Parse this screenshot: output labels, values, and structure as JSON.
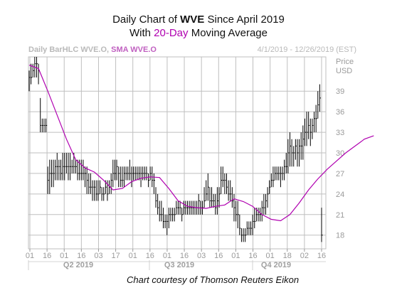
{
  "header": {
    "line1_pre": "Daily Chart of ",
    "line1_ticker": "WVE",
    "line1_post": " Since April 2019",
    "line2_pre": "With ",
    "line2_hl": "20-Day",
    "line2_post": " Moving Average",
    "sub_left": "Daily BarHLC WVE.O, ",
    "sub_left_ma": "SMA WVE.O",
    "sub_right": "4/1/2019 - 12/26/2019 (EST)"
  },
  "credit": "Chart courtesy of Thomson Reuters Eikon",
  "colors": {
    "bars": "#000000",
    "sma": "#b000b0",
    "grid": "#bfbfbf",
    "accent": "#b000b0"
  },
  "chart_data": {
    "type": "line",
    "title": "Daily Chart of WVE Since April 2019",
    "subtitle": "With 20-Day Moving Average",
    "ylabel": "Price USD",
    "yaxis_title": [
      "Price",
      "USD"
    ],
    "ylim": [
      16,
      44
    ],
    "yticks": [
      18,
      21,
      24,
      27,
      30,
      33,
      36,
      39
    ],
    "xlabels": [
      "01",
      "16",
      "01",
      "16",
      "03",
      "17",
      "01",
      "16",
      "01",
      "16",
      "03",
      "16",
      "01",
      "16",
      "01",
      "18",
      "02",
      "16"
    ],
    "quarters": [
      "Q2 2019",
      "Q3 2019",
      "Q4 2019"
    ],
    "grid": true,
    "series": [
      {
        "name": "Daily BarHLC WVE.O",
        "kind": "hlc",
        "points": [
          [
            39,
            42,
            41
          ],
          [
            40,
            43,
            41
          ],
          [
            41,
            43,
            42
          ],
          [
            41,
            44,
            43
          ],
          [
            41,
            44,
            43
          ],
          [
            40,
            43,
            42
          ],
          [
            33,
            38,
            34
          ],
          [
            33,
            35,
            34
          ],
          [
            33,
            35,
            34
          ],
          [
            33,
            35,
            34
          ],
          [
            24,
            28,
            26
          ],
          [
            24,
            29,
            27
          ],
          [
            25,
            29,
            27
          ],
          [
            25,
            29,
            27
          ],
          [
            26,
            29,
            28
          ],
          [
            26,
            30,
            28
          ],
          [
            26,
            29,
            28
          ],
          [
            26,
            29,
            27
          ],
          [
            26,
            30,
            28
          ],
          [
            26,
            30,
            28
          ],
          [
            27,
            30,
            28
          ],
          [
            26,
            30,
            28
          ],
          [
            26,
            30,
            28
          ],
          [
            27,
            29,
            28
          ],
          [
            27,
            30,
            28
          ],
          [
            27,
            29,
            28
          ],
          [
            26,
            29,
            27
          ],
          [
            26,
            29,
            27
          ],
          [
            26,
            29,
            27
          ],
          [
            26,
            29,
            27
          ],
          [
            25,
            28,
            27
          ],
          [
            24,
            28,
            26
          ],
          [
            24,
            27,
            25
          ],
          [
            24,
            27,
            25
          ],
          [
            23,
            26,
            25
          ],
          [
            23,
            26,
            25
          ],
          [
            23,
            26,
            24
          ],
          [
            23,
            26,
            24
          ],
          [
            24,
            26,
            25
          ],
          [
            23,
            25,
            24
          ],
          [
            23,
            25,
            24
          ],
          [
            24,
            26,
            25
          ],
          [
            23,
            26,
            24
          ],
          [
            24,
            26,
            25
          ],
          [
            24,
            27,
            26
          ],
          [
            25,
            29,
            27
          ],
          [
            26,
            29,
            27
          ],
          [
            26,
            29,
            28
          ],
          [
            25,
            28,
            27
          ],
          [
            25,
            28,
            26
          ],
          [
            25,
            28,
            26
          ],
          [
            25,
            28,
            27
          ],
          [
            26,
            28,
            27
          ],
          [
            26,
            28,
            27
          ],
          [
            26,
            29,
            27
          ],
          [
            25,
            28,
            27
          ],
          [
            26,
            28,
            27
          ],
          [
            26,
            28,
            27
          ],
          [
            26,
            28,
            27
          ],
          [
            26,
            28,
            27
          ],
          [
            25,
            28,
            27
          ],
          [
            26,
            28,
            27
          ],
          [
            26,
            28,
            27
          ],
          [
            26,
            28,
            27
          ],
          [
            25,
            27,
            26
          ],
          [
            26,
            28,
            27
          ],
          [
            25,
            28,
            26
          ],
          [
            24,
            27,
            26
          ],
          [
            22,
            25,
            23
          ],
          [
            21,
            24,
            22
          ],
          [
            20,
            23,
            21
          ],
          [
            20,
            23,
            21
          ],
          [
            19,
            22,
            20
          ],
          [
            19,
            21,
            20
          ],
          [
            18,
            21,
            20
          ],
          [
            19,
            22,
            21
          ],
          [
            20,
            22,
            21
          ],
          [
            20,
            22,
            21
          ],
          [
            20,
            22,
            21
          ],
          [
            21,
            23,
            22
          ],
          [
            21,
            23,
            22
          ],
          [
            21,
            23,
            22
          ],
          [
            20,
            22,
            21
          ],
          [
            21,
            23,
            22
          ],
          [
            21,
            23,
            22
          ],
          [
            21,
            23,
            22
          ],
          [
            21,
            23,
            22
          ],
          [
            21,
            23,
            22
          ],
          [
            21,
            23,
            22
          ],
          [
            21,
            23,
            22
          ],
          [
            21,
            23,
            22
          ],
          [
            21,
            24,
            23
          ],
          [
            21,
            23,
            22
          ],
          [
            21,
            23,
            22
          ],
          [
            22,
            25,
            23
          ],
          [
            23,
            26,
            24
          ],
          [
            23,
            27,
            25
          ],
          [
            22,
            25,
            23
          ],
          [
            22,
            25,
            23
          ],
          [
            22,
            24,
            23
          ],
          [
            21,
            24,
            22
          ],
          [
            21,
            25,
            23
          ],
          [
            22,
            25,
            24
          ],
          [
            24,
            28,
            26
          ],
          [
            25,
            28,
            26
          ],
          [
            24,
            27,
            26
          ],
          [
            24,
            27,
            25
          ],
          [
            23,
            26,
            24
          ],
          [
            23,
            26,
            24
          ],
          [
            22,
            25,
            23
          ],
          [
            20,
            24,
            22
          ],
          [
            20,
            23,
            21
          ],
          [
            19,
            23,
            21
          ],
          [
            18,
            21,
            19
          ],
          [
            17,
            19,
            18
          ],
          [
            17,
            19,
            18
          ],
          [
            17,
            19,
            18
          ],
          [
            18,
            20,
            19
          ],
          [
            18,
            20,
            19
          ],
          [
            18,
            20,
            19
          ],
          [
            18,
            21,
            20
          ],
          [
            19,
            22,
            20
          ],
          [
            20,
            22,
            21
          ],
          [
            20,
            22,
            21
          ],
          [
            20,
            22,
            21
          ],
          [
            20,
            23,
            22
          ],
          [
            21,
            24,
            22
          ],
          [
            21,
            24,
            23
          ],
          [
            22,
            25,
            24
          ],
          [
            24,
            26,
            25
          ],
          [
            25,
            27,
            26
          ],
          [
            25,
            28,
            26
          ],
          [
            26,
            28,
            27
          ],
          [
            26,
            28,
            27
          ],
          [
            26,
            28,
            27
          ],
          [
            25,
            28,
            27
          ],
          [
            26,
            28,
            27
          ],
          [
            26,
            29,
            28
          ],
          [
            27,
            30,
            28
          ],
          [
            27,
            32,
            30
          ],
          [
            28,
            33,
            31
          ],
          [
            28,
            32,
            30
          ],
          [
            28,
            31,
            30
          ],
          [
            29,
            32,
            31
          ],
          [
            28,
            32,
            30
          ],
          [
            28,
            32,
            31
          ],
          [
            29,
            33,
            31
          ],
          [
            29,
            34,
            32
          ],
          [
            31,
            35,
            33
          ],
          [
            31,
            36,
            33
          ],
          [
            32,
            36,
            34
          ],
          [
            31,
            35,
            33
          ],
          [
            32,
            35,
            34
          ],
          [
            33,
            36,
            35
          ],
          [
            33,
            37,
            35
          ],
          [
            35,
            39,
            37
          ],
          [
            36,
            40,
            38
          ],
          [
            17,
            22,
            18
          ]
        ]
      },
      {
        "name": "SMA WVE.O",
        "kind": "line",
        "values": [
          [
            0,
            42.8
          ],
          [
            5,
            42.3
          ],
          [
            10,
            39.0
          ],
          [
            20,
            32.0
          ],
          [
            25,
            29.0
          ],
          [
            30,
            27.8
          ],
          [
            35,
            27.2
          ],
          [
            40,
            26.0
          ],
          [
            45,
            24.6
          ],
          [
            50,
            24.8
          ],
          [
            55,
            25.8
          ],
          [
            60,
            26.3
          ],
          [
            65,
            26.5
          ],
          [
            70,
            26.4
          ],
          [
            75,
            24.8
          ],
          [
            80,
            23.0
          ],
          [
            85,
            22.2
          ],
          [
            90,
            22.0
          ],
          [
            95,
            21.9
          ],
          [
            100,
            22.2
          ],
          [
            105,
            22.4
          ],
          [
            110,
            23.3
          ],
          [
            115,
            22.9
          ],
          [
            120,
            22.2
          ],
          [
            125,
            21.0
          ],
          [
            130,
            20.3
          ],
          [
            135,
            20.1
          ],
          [
            140,
            21.0
          ],
          [
            145,
            22.7
          ],
          [
            150,
            24.6
          ],
          [
            155,
            26.2
          ],
          [
            160,
            27.6
          ],
          [
            165,
            28.8
          ],
          [
            170,
            30.0
          ],
          [
            175,
            31.0
          ],
          [
            180,
            32.0
          ],
          [
            185,
            32.5
          ]
        ]
      }
    ]
  }
}
